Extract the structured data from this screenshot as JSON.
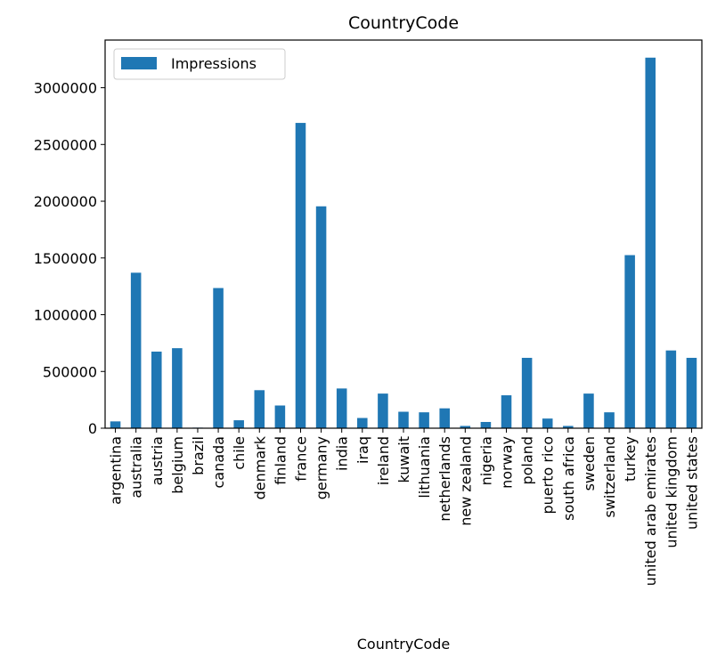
{
  "chart_data": {
    "type": "bar",
    "title": "CountryCode",
    "xlabel": "CountryCode",
    "ylabel": "",
    "ylim": [
      0,
      3420000
    ],
    "yticks": [
      0,
      500000,
      1000000,
      1500000,
      2000000,
      2500000,
      3000000
    ],
    "ytick_labels": [
      "0",
      "500000",
      "1000000",
      "1500000",
      "2000000",
      "2500000",
      "3000000"
    ],
    "legend_position": "top-left",
    "grid": false,
    "categories": [
      "argentina",
      "australia",
      "austria",
      "belgium",
      "brazil",
      "canada",
      "chile",
      "denmark",
      "finland",
      "france",
      "germany",
      "india",
      "iraq",
      "ireland",
      "kuwait",
      "lithuania",
      "netherlands",
      "new zealand",
      "nigeria",
      "norway",
      "poland",
      "puerto rico",
      "south africa",
      "sweden",
      "switzerland",
      "turkey",
      "united arab emirates",
      "united kingdom",
      "united states"
    ],
    "series": [
      {
        "name": "Impressions",
        "color": "#1f77b4",
        "values": [
          60000,
          1370000,
          675000,
          705000,
          5000,
          1235000,
          70000,
          335000,
          200000,
          2690000,
          1955000,
          350000,
          90000,
          305000,
          145000,
          140000,
          175000,
          20000,
          55000,
          290000,
          620000,
          85000,
          20000,
          305000,
          140000,
          1525000,
          3265000,
          685000,
          620000
        ]
      }
    ]
  }
}
